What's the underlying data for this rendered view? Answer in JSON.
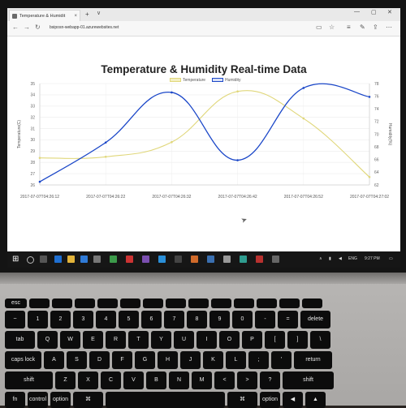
{
  "browser": {
    "tab_title": "Temperature & Humidit",
    "tab_close": "×",
    "new_tab": "+",
    "tab_menu": "∨",
    "url": "bsiposn-webapp-01.azurewebsites.net",
    "back_icon": "back-arrow-icon",
    "forward_icon": "forward-arrow-icon",
    "refresh_icon": "refresh-icon"
  },
  "taskbar": {
    "language": "ENG",
    "time": "9:27 PM"
  },
  "chart_data": {
    "type": "line",
    "title": "Temperature & Humidity Real-time Data",
    "categories": [
      "2017-07-07T04:26:12",
      "2017-07-07T04:26:22",
      "2017-07-07T04:26:32",
      "2017-07-07T04:26:42",
      "2017-07-07T04:26:52",
      "2017-07-07T04:27:02"
    ],
    "ylabel": "Temperature(C)",
    "y2label": "Humidity(%)",
    "ylim": [
      26,
      35
    ],
    "y2lim": [
      62,
      78
    ],
    "yticks": [
      26,
      27,
      28,
      29,
      30,
      31,
      32,
      33,
      34,
      35
    ],
    "y2ticks": [
      62,
      64,
      66,
      68,
      70,
      72,
      74,
      76,
      78
    ],
    "legend_position": "top",
    "grid": true,
    "series": [
      {
        "name": "Temperature",
        "axis": "left",
        "color": "#e0d77a",
        "values": [
          28.4,
          28.5,
          29.8,
          34.3,
          31.9,
          26.7
        ]
      },
      {
        "name": "Humidity",
        "axis": "right",
        "color": "#1b47c8",
        "values": [
          62.5,
          68.7,
          76.6,
          65.9,
          77.3,
          75.9
        ]
      }
    ]
  }
}
